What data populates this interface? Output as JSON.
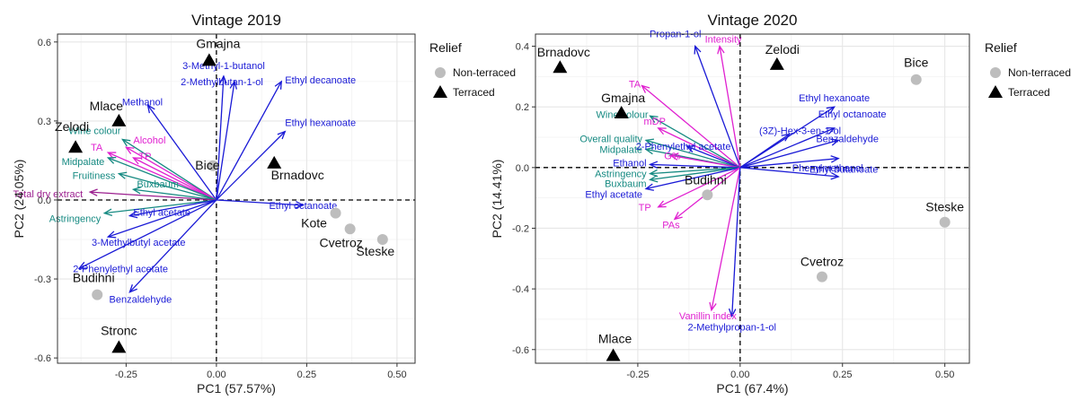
{
  "legend": {
    "title": "Relief",
    "items": [
      {
        "label": "Non-terraced",
        "shape": "circle",
        "color": "#bdbdbd"
      },
      {
        "label": "Terraced",
        "shape": "triangle",
        "color": "#000000"
      }
    ]
  },
  "colors": {
    "blue": "#1a1ad6",
    "teal": "#168a82",
    "magenta": "#e020d0",
    "darkmagenta": "#9b1f8f"
  },
  "chart_data": [
    {
      "type": "scatter",
      "title": "Vintage 2019",
      "xlabel": "PC1 (57.57%)",
      "ylabel": "PC2 (24.05%)",
      "xlim": [
        -0.44,
        0.55
      ],
      "ylim": [
        -0.62,
        0.63
      ],
      "xticks": [
        -0.25,
        0.0,
        0.25,
        0.5
      ],
      "xtick_labels": [
        "-0.25",
        "0.00",
        "0.25",
        "0.50"
      ],
      "yticks": [
        -0.6,
        -0.3,
        0.0,
        0.3,
        0.6
      ],
      "ytick_labels": [
        "-0.6",
        "-0.3",
        "0.0",
        "0.3",
        "0.6"
      ],
      "points": [
        {
          "label": "Gmajna",
          "x": -0.02,
          "y": 0.53,
          "relief": "Terraced"
        },
        {
          "label": "Mlace",
          "x": -0.27,
          "y": 0.3,
          "relief": "Terraced"
        },
        {
          "label": "Zelodi",
          "x": -0.39,
          "y": 0.2,
          "relief": "Terraced"
        },
        {
          "label": "Brnadovc",
          "x": 0.16,
          "y": 0.14,
          "relief": "Terraced"
        },
        {
          "label": "Stronc",
          "x": -0.27,
          "y": -0.56,
          "relief": "Terraced"
        },
        {
          "label": "Bice",
          "x": -0.01,
          "y": 0.13,
          "relief": "Non-terraced"
        },
        {
          "label": "Kote",
          "x": 0.33,
          "y": -0.05,
          "relief": "Non-terraced"
        },
        {
          "label": "Cvetroz",
          "x": 0.37,
          "y": -0.11,
          "relief": "Non-terraced"
        },
        {
          "label": "Steske",
          "x": 0.46,
          "y": -0.15,
          "relief": "Non-terraced"
        },
        {
          "label": "Budihni",
          "x": -0.33,
          "y": -0.36,
          "relief": "Non-terraced"
        }
      ],
      "vectors": [
        {
          "label": "3-Methyl-1-butanol",
          "x": 0.02,
          "y": 0.47,
          "group": "blue"
        },
        {
          "label": "2-Methylbutan-1-ol",
          "x": 0.05,
          "y": 0.45,
          "group": "blue"
        },
        {
          "label": "Ethyl decanoate",
          "x": 0.18,
          "y": 0.45,
          "group": "blue"
        },
        {
          "label": "Methanol",
          "x": -0.19,
          "y": 0.36,
          "group": "blue"
        },
        {
          "label": "Ethyl hexanoate",
          "x": 0.19,
          "y": 0.26,
          "group": "blue"
        },
        {
          "label": "Wine colour",
          "x": -0.26,
          "y": 0.23,
          "group": "teal"
        },
        {
          "label": "TA",
          "x": -0.3,
          "y": 0.18,
          "group": "magenta"
        },
        {
          "label": "Alcohol",
          "x": -0.25,
          "y": 0.2,
          "group": "magenta"
        },
        {
          "label": "TP",
          "x": -0.23,
          "y": 0.16,
          "group": "magenta"
        },
        {
          "label": "Midpalate",
          "x": -0.3,
          "y": 0.16,
          "group": "teal"
        },
        {
          "label": "Fruitiness",
          "x": -0.27,
          "y": 0.1,
          "group": "teal"
        },
        {
          "label": "Buxbaum",
          "x": -0.23,
          "y": 0.04,
          "group": "teal"
        },
        {
          "label": "Total dry extract",
          "x": -0.35,
          "y": 0.03,
          "group": "darkmagenta"
        },
        {
          "label": "Ethyl octanoate",
          "x": 0.24,
          "y": -0.02,
          "group": "blue"
        },
        {
          "label": "Astringency",
          "x": -0.31,
          "y": -0.05,
          "group": "teal"
        },
        {
          "label": "Ethyl acetate",
          "x": -0.24,
          "y": -0.06,
          "group": "blue"
        },
        {
          "label": "3-Methylbutyl acetate",
          "x": -0.3,
          "y": -0.14,
          "group": "blue"
        },
        {
          "label": "2-Phenylethyl acetate",
          "x": -0.38,
          "y": -0.26,
          "group": "blue"
        },
        {
          "label": "Benzaldehyde",
          "x": -0.24,
          "y": -0.35,
          "group": "blue"
        }
      ]
    },
    {
      "type": "scatter",
      "title": "Vintage 2020",
      "xlabel": "PC1 (67.4%)",
      "ylabel": "PC2 (14.41%)",
      "xlim": [
        -0.5,
        0.56
      ],
      "ylim": [
        -0.645,
        0.44
      ],
      "xticks": [
        -0.25,
        0.0,
        0.25,
        0.5
      ],
      "xtick_labels": [
        "-0.25",
        "0.00",
        "0.25",
        "0.50"
      ],
      "yticks": [
        -0.6,
        -0.4,
        -0.2,
        0.0,
        0.2,
        0.4
      ],
      "ytick_labels": [
        "-0.6",
        "-0.4",
        "-0.2",
        "0.0",
        "0.2",
        "0.4"
      ],
      "points": [
        {
          "label": "Brnadovc",
          "x": -0.44,
          "y": 0.33,
          "relief": "Terraced"
        },
        {
          "label": "Zelodi",
          "x": 0.09,
          "y": 0.34,
          "relief": "Terraced"
        },
        {
          "label": "Gmajna",
          "x": -0.29,
          "y": 0.18,
          "relief": "Terraced"
        },
        {
          "label": "Mlace",
          "x": -0.31,
          "y": -0.62,
          "relief": "Terraced"
        },
        {
          "label": "Bice",
          "x": 0.43,
          "y": 0.29,
          "relief": "Non-terraced"
        },
        {
          "label": "Budihni",
          "x": -0.08,
          "y": -0.09,
          "relief": "Non-terraced"
        },
        {
          "label": "Steske",
          "x": 0.5,
          "y": -0.18,
          "relief": "Non-terraced"
        },
        {
          "label": "Cvetroz",
          "x": 0.2,
          "y": -0.36,
          "relief": "Non-terraced"
        }
      ],
      "vectors": [
        {
          "label": "Propan-1-ol",
          "x": -0.11,
          "y": 0.4,
          "group": "blue"
        },
        {
          "label": "Intensity",
          "x": -0.05,
          "y": 0.4,
          "group": "magenta"
        },
        {
          "label": "TA",
          "x": -0.24,
          "y": 0.27,
          "group": "magenta"
        },
        {
          "label": "Ethyl hexanoate",
          "x": 0.23,
          "y": 0.2,
          "group": "blue"
        },
        {
          "label": "Wine colour",
          "x": -0.22,
          "y": 0.17,
          "group": "teal"
        },
        {
          "label": "mDP",
          "x": -0.2,
          "y": 0.13,
          "group": "magenta"
        },
        {
          "label": "(3Z)-Hex-3-en-1-ol",
          "x": 0.12,
          "y": 0.11,
          "group": "blue"
        },
        {
          "label": "Ethyl octanoate",
          "x": 0.23,
          "y": 0.13,
          "group": "blue"
        },
        {
          "label": "Overall quality",
          "x": -0.23,
          "y": 0.09,
          "group": "teal"
        },
        {
          "label": "2-Phenylethyl acetate",
          "x": -0.13,
          "y": 0.07,
          "group": "blue"
        },
        {
          "label": "Benzaldehyde",
          "x": 0.24,
          "y": 0.09,
          "group": "blue"
        },
        {
          "label": "Midpalate",
          "x": -0.23,
          "y": 0.06,
          "group": "teal"
        },
        {
          "label": "G%",
          "x": -0.17,
          "y": 0.04,
          "group": "magenta"
        },
        {
          "label": "Ethyl butanoate",
          "x": 0.24,
          "y": 0.03,
          "group": "blue"
        },
        {
          "label": "Ethanol",
          "x": -0.22,
          "y": 0.01,
          "group": "blue"
        },
        {
          "label": "Phenylmethanol",
          "x": 0.24,
          "y": -0.03,
          "group": "blue"
        },
        {
          "label": "Astringency",
          "x": -0.22,
          "y": -0.02,
          "group": "teal"
        },
        {
          "label": "Buxbaum",
          "x": -0.22,
          "y": -0.04,
          "group": "teal"
        },
        {
          "label": "Ethyl acetate",
          "x": -0.23,
          "y": -0.07,
          "group": "blue"
        },
        {
          "label": "TP",
          "x": -0.2,
          "y": -0.13,
          "group": "magenta"
        },
        {
          "label": "PAs",
          "x": -0.16,
          "y": -0.17,
          "group": "magenta"
        },
        {
          "label": "Vanillin index",
          "x": -0.07,
          "y": -0.47,
          "group": "magenta"
        },
        {
          "label": "2-Methylpropan-1-ol",
          "x": -0.02,
          "y": -0.49,
          "group": "blue"
        }
      ]
    }
  ]
}
